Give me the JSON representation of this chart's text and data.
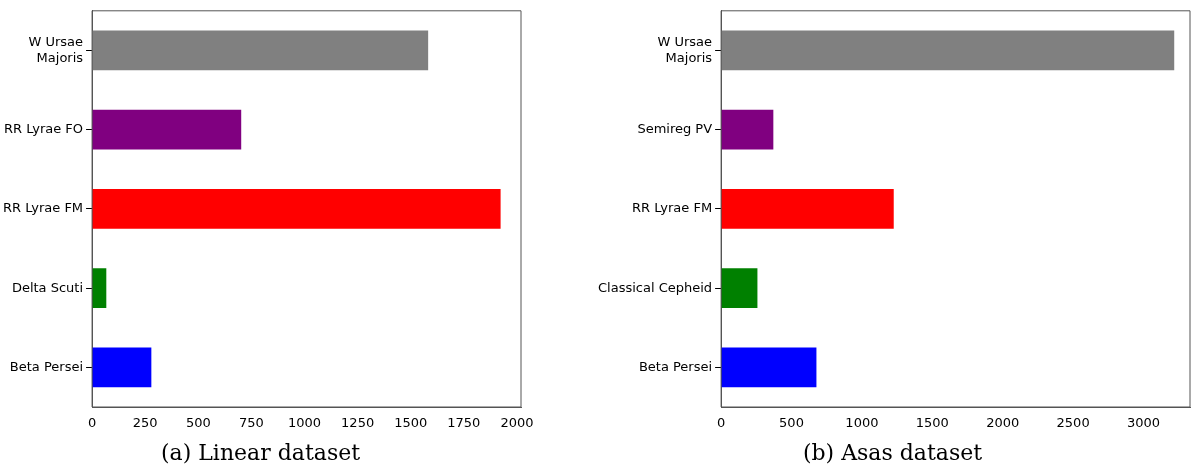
{
  "chart_data": [
    {
      "type": "bar",
      "orientation": "horizontal",
      "title": "(a) Linear dataset",
      "categories": [
        "W Ursae\nMajoris",
        "RR Lyrae FO",
        "RR Lyrae FM",
        "Delta Scuti",
        "Beta Persei"
      ],
      "values": [
        1582,
        702,
        1923,
        67,
        279
      ],
      "colors": [
        "#808080",
        "#800080",
        "#ff0000",
        "#008000",
        "#0000ff"
      ],
      "xlim": [
        0,
        2019
      ],
      "xticks": [
        0,
        250,
        500,
        750,
        1000,
        1250,
        1500,
        1750,
        2000
      ],
      "grid": false,
      "legend": false
    },
    {
      "type": "bar",
      "orientation": "horizontal",
      "title": "(b) Asas dataset",
      "categories": [
        "W Ursae\nMajoris",
        "Semireg PV",
        "RR Lyrae FM",
        "Classical Cepheid",
        "Beta Persei"
      ],
      "values": [
        3218,
        371,
        1226,
        258,
        677
      ],
      "colors": [
        "#808080",
        "#800080",
        "#ff0000",
        "#008000",
        "#0000ff"
      ],
      "xlim": [
        0,
        3330
      ],
      "xticks": [
        0,
        500,
        1000,
        1500,
        2000,
        2500,
        3000
      ],
      "grid": false,
      "legend": false
    }
  ]
}
